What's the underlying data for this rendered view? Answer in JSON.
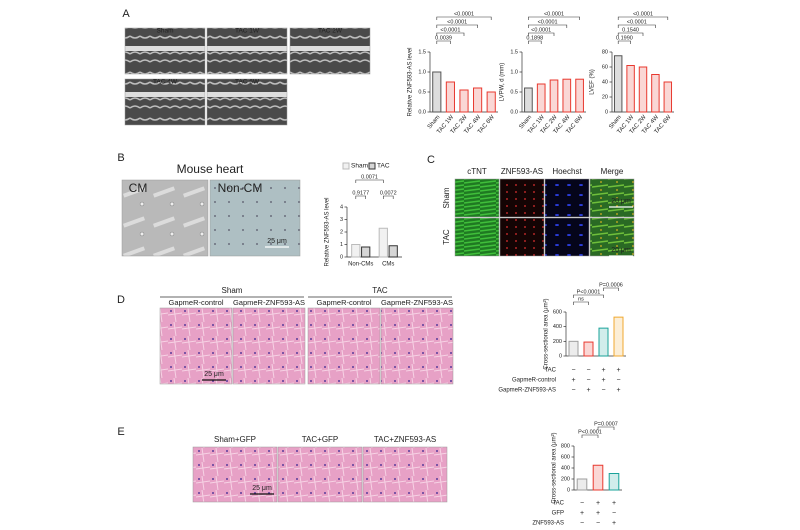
{
  "figure": {
    "A": {
      "label": "A",
      "images": [
        "Sham",
        "TAC 1W",
        "TAC 2W",
        "TAC 4W",
        "TAC 6W"
      ]
    },
    "B": {
      "label": "B",
      "title": "Mouse heart",
      "images": [
        "CM",
        "Non-CM"
      ],
      "scale": "25 μm"
    },
    "C": {
      "label": "C",
      "columns": [
        "cTNT",
        "ZNF593-AS",
        "Hoechst",
        "Merge"
      ],
      "rows": [
        "Sham",
        "TAC"
      ],
      "scale": "20 μm"
    },
    "D": {
      "label": "D",
      "groups": [
        "Sham",
        "TAC"
      ],
      "images": [
        "GapmeR-control",
        "GapmeR-ZNF593-AS",
        "GapmeR-control",
        "GapmeR-ZNF593-AS"
      ],
      "scale": "25 μm"
    },
    "E": {
      "label": "E",
      "images": [
        "Sham+GFP",
        "TAC+GFP",
        "TAC+ZNF593-AS"
      ],
      "scale": "25 μm"
    }
  },
  "chart_data": [
    {
      "type": "bar",
      "ylabel": "Relative ZNF593-AS level",
      "categories": [
        "Sham",
        "TAC 1W",
        "TAC 2W",
        "TAC 4W",
        "TAC 6W"
      ],
      "values": [
        1.0,
        0.75,
        0.55,
        0.6,
        0.5
      ],
      "colors": [
        "#555555",
        "#e8392f",
        "#e8392f",
        "#e8392f",
        "#e8392f"
      ],
      "ylim": [
        0,
        1.5
      ],
      "yticks": [
        {
          "value": 0,
          "label": "0.0"
        },
        0.5,
        {
          "value": 1,
          "label": "1.0"
        },
        1.5
      ],
      "annotations": [
        "0.0039",
        "<0.0001",
        "<0.0001",
        "<0.0001"
      ]
    },
    {
      "type": "bar",
      "ylabel": "LVPW, d (mm)",
      "categories": [
        "Sham",
        "TAC 1W",
        "TAC 2W",
        "TAC 4W",
        "TAC 6W"
      ],
      "values": [
        0.6,
        0.7,
        0.8,
        0.82,
        0.82
      ],
      "colors": [
        "#555555",
        "#e8392f",
        "#e8392f",
        "#e8392f",
        "#e8392f"
      ],
      "ylim": [
        0,
        1.5
      ],
      "yticks": [
        {
          "value": 0,
          "label": "0.0"
        },
        0.5,
        {
          "value": 1,
          "label": "1.0"
        },
        1.5
      ],
      "annotations": [
        "0.1898",
        "<0.0001",
        "<0.0001",
        "<0.0001"
      ]
    },
    {
      "type": "bar",
      "ylabel": "LVEF (%)",
      "categories": [
        "Sham",
        "TAC 1W",
        "TAC 2W",
        "TAC 4W",
        "TAC 6W"
      ],
      "values": [
        75,
        62,
        60,
        50,
        40
      ],
      "colors": [
        "#555555",
        "#e8392f",
        "#e8392f",
        "#e8392f",
        "#e8392f"
      ],
      "ylim": [
        0,
        80
      ],
      "yticks": [
        0,
        20,
        40,
        60,
        80
      ],
      "annotations": [
        "0.1990",
        "0.1540",
        "<0.0001",
        "<0.0001"
      ]
    },
    {
      "type": "bar",
      "ylabel": "Relative ZNF593-AS level",
      "categories": [
        "Non-CMs",
        "CMs"
      ],
      "series": [
        {
          "name": "Sham",
          "color": "#bbbbbb",
          "values": [
            1.0,
            2.3
          ]
        },
        {
          "name": "TAC",
          "color": "#333333",
          "values": [
            0.8,
            0.9
          ]
        }
      ],
      "ylim": [
        0,
        4
      ],
      "yticks": [
        0,
        1,
        2,
        3,
        4
      ],
      "annotations": [
        "0.9177",
        "0.0071",
        "0.0072"
      ]
    },
    {
      "type": "bar",
      "ylabel": "Cross-sectional area (μm²)",
      "values": [
        200,
        190,
        380,
        530
      ],
      "colors": [
        "#9e9e9e",
        "#e8392f",
        "#1aa39a",
        "#f0a830"
      ],
      "ylim": [
        0,
        600
      ],
      "yticks": [
        0,
        200,
        400,
        600
      ],
      "annotations": [
        "ns",
        "P<0.0001",
        "P=0.0006"
      ],
      "conditions": [
        {
          "label": "TAC",
          "marks": [
            "−",
            "−",
            "+",
            "+"
          ]
        },
        {
          "label": "GapmeR-control",
          "marks": [
            "+",
            "−",
            "+",
            "−"
          ]
        },
        {
          "label": "GapmeR-ZNF593-AS",
          "marks": [
            "−",
            "+",
            "−",
            "+"
          ]
        }
      ]
    },
    {
      "type": "bar",
      "ylabel": "Cross-sectional area (μm²)",
      "values": [
        200,
        450,
        300
      ],
      "colors": [
        "#9e9e9e",
        "#e8392f",
        "#1aa39a"
      ],
      "ylim": [
        0,
        800
      ],
      "yticks": [
        0,
        200,
        400,
        600,
        800
      ],
      "annotations": [
        "P<0.0001",
        "P=0.0007"
      ],
      "conditions": [
        {
          "label": "TAC",
          "marks": [
            "−",
            "+",
            "+"
          ]
        },
        {
          "label": "GFP",
          "marks": [
            "+",
            "+",
            "−"
          ]
        },
        {
          "label": "ZNF593-AS",
          "marks": [
            "−",
            "−",
            "+"
          ]
        }
      ]
    }
  ]
}
